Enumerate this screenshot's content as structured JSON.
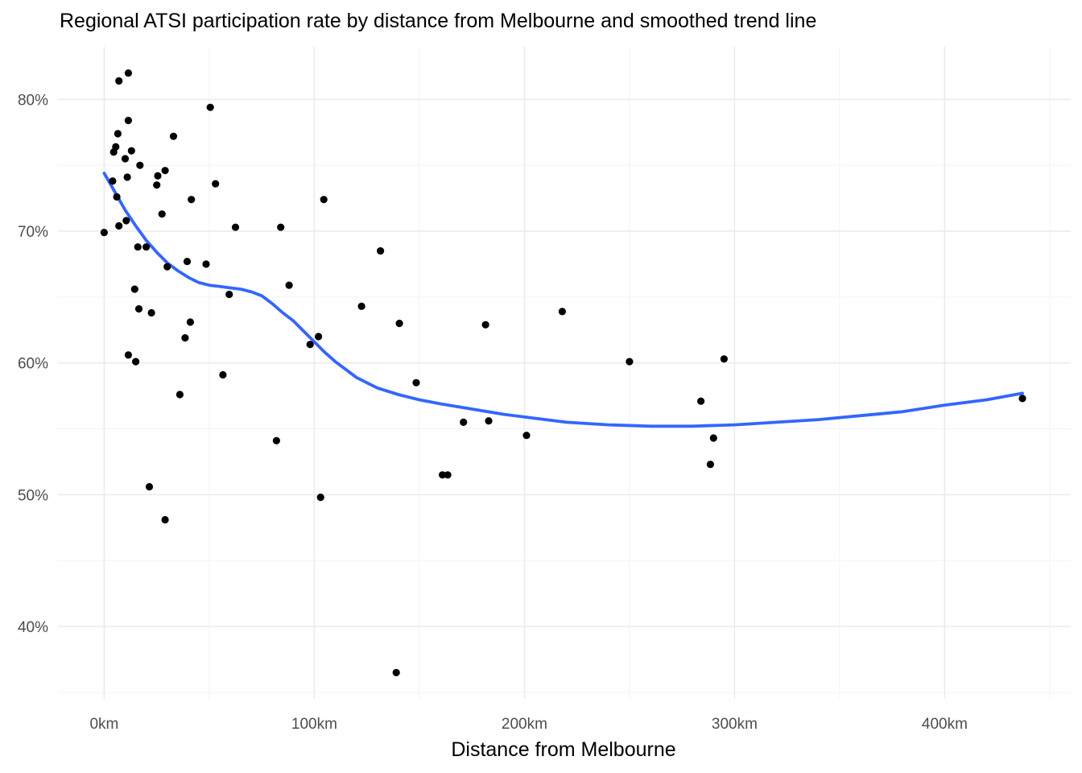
{
  "chart_data": {
    "type": "scatter",
    "title": "Regional ATSI participation rate by distance from Melbourne and smoothed trend line",
    "xlabel": "Distance from Melbourne",
    "ylabel": "",
    "xlim": [
      -22,
      460
    ],
    "ylim": [
      34.5,
      84
    ],
    "x_ticks": [
      {
        "value": 0,
        "label": "0km"
      },
      {
        "value": 100,
        "label": "100km"
      },
      {
        "value": 200,
        "label": "200km"
      },
      {
        "value": 300,
        "label": "300km"
      },
      {
        "value": 400,
        "label": "400km"
      }
    ],
    "y_ticks": [
      {
        "value": 40,
        "label": "40%"
      },
      {
        "value": 50,
        "label": "50%"
      },
      {
        "value": 60,
        "label": "60%"
      },
      {
        "value": 70,
        "label": "70%"
      },
      {
        "value": 80,
        "label": "80%"
      }
    ],
    "grid": true,
    "legend": "none",
    "colors": {
      "points": "#000000",
      "trend": "#3366ff"
    },
    "points": [
      {
        "x": 0,
        "y": 69.9
      },
      {
        "x": 4,
        "y": 73.8
      },
      {
        "x": 4.5,
        "y": 76
      },
      {
        "x": 5.5,
        "y": 76.4
      },
      {
        "x": 6,
        "y": 72.6
      },
      {
        "x": 6.5,
        "y": 77.4
      },
      {
        "x": 7,
        "y": 81.4
      },
      {
        "x": 7,
        "y": 70.4
      },
      {
        "x": 10,
        "y": 75.5
      },
      {
        "x": 10.5,
        "y": 70.8
      },
      {
        "x": 11,
        "y": 74.1
      },
      {
        "x": 11.5,
        "y": 78.4
      },
      {
        "x": 11.5,
        "y": 82
      },
      {
        "x": 11.5,
        "y": 60.6
      },
      {
        "x": 13,
        "y": 76.1
      },
      {
        "x": 14.5,
        "y": 65.6
      },
      {
        "x": 15,
        "y": 60.1
      },
      {
        "x": 16,
        "y": 68.8
      },
      {
        "x": 16.5,
        "y": 64.1
      },
      {
        "x": 17,
        "y": 75
      },
      {
        "x": 20,
        "y": 68.8
      },
      {
        "x": 21.5,
        "y": 50.6
      },
      {
        "x": 22.5,
        "y": 63.8
      },
      {
        "x": 25,
        "y": 73.5
      },
      {
        "x": 25.5,
        "y": 74.2
      },
      {
        "x": 27.5,
        "y": 71.3
      },
      {
        "x": 29,
        "y": 74.6
      },
      {
        "x": 29,
        "y": 48.1
      },
      {
        "x": 30,
        "y": 67.3
      },
      {
        "x": 33,
        "y": 77.2
      },
      {
        "x": 36,
        "y": 57.6
      },
      {
        "x": 38.5,
        "y": 61.9
      },
      {
        "x": 39.5,
        "y": 67.7
      },
      {
        "x": 41,
        "y": 63.1
      },
      {
        "x": 41.5,
        "y": 72.4
      },
      {
        "x": 48.5,
        "y": 67.5
      },
      {
        "x": 50.5,
        "y": 79.4
      },
      {
        "x": 53,
        "y": 73.6
      },
      {
        "x": 56.5,
        "y": 59.1
      },
      {
        "x": 59.5,
        "y": 65.2
      },
      {
        "x": 62.5,
        "y": 70.3
      },
      {
        "x": 82,
        "y": 54.1
      },
      {
        "x": 84,
        "y": 70.3
      },
      {
        "x": 88,
        "y": 65.9
      },
      {
        "x": 98,
        "y": 61.4
      },
      {
        "x": 102,
        "y": 62
      },
      {
        "x": 103,
        "y": 49.8
      },
      {
        "x": 104.5,
        "y": 72.4
      },
      {
        "x": 122.5,
        "y": 64.3
      },
      {
        "x": 131.5,
        "y": 68.5
      },
      {
        "x": 139,
        "y": 36.5
      },
      {
        "x": 140.5,
        "y": 63
      },
      {
        "x": 148.5,
        "y": 58.5
      },
      {
        "x": 161,
        "y": 51.5
      },
      {
        "x": 163.5,
        "y": 51.5
      },
      {
        "x": 171,
        "y": 55.5
      },
      {
        "x": 181.5,
        "y": 62.9
      },
      {
        "x": 183,
        "y": 55.6
      },
      {
        "x": 201,
        "y": 54.5
      },
      {
        "x": 218,
        "y": 63.9
      },
      {
        "x": 250,
        "y": 60.1
      },
      {
        "x": 284,
        "y": 57.1
      },
      {
        "x": 288.5,
        "y": 52.3
      },
      {
        "x": 290,
        "y": 54.3
      },
      {
        "x": 295,
        "y": 60.3
      },
      {
        "x": 437,
        "y": 57.3
      }
    ],
    "trend": [
      {
        "x": 0,
        "y": 74.4
      },
      {
        "x": 5,
        "y": 73
      },
      {
        "x": 10,
        "y": 71.6
      },
      {
        "x": 15,
        "y": 70.4
      },
      {
        "x": 20,
        "y": 69.3
      },
      {
        "x": 25,
        "y": 68.4
      },
      {
        "x": 30,
        "y": 67.6
      },
      {
        "x": 35,
        "y": 67
      },
      {
        "x": 40,
        "y": 66.5
      },
      {
        "x": 45,
        "y": 66.1
      },
      {
        "x": 50,
        "y": 65.9
      },
      {
        "x": 55,
        "y": 65.8
      },
      {
        "x": 60,
        "y": 65.7
      },
      {
        "x": 65,
        "y": 65.6
      },
      {
        "x": 70,
        "y": 65.4
      },
      {
        "x": 75,
        "y": 65.1
      },
      {
        "x": 80,
        "y": 64.5
      },
      {
        "x": 85,
        "y": 63.8
      },
      {
        "x": 90,
        "y": 63.2
      },
      {
        "x": 95,
        "y": 62.4
      },
      {
        "x": 100,
        "y": 61.6
      },
      {
        "x": 105,
        "y": 60.8
      },
      {
        "x": 110,
        "y": 60.1
      },
      {
        "x": 115,
        "y": 59.5
      },
      {
        "x": 120,
        "y": 58.9
      },
      {
        "x": 125,
        "y": 58.5
      },
      {
        "x": 130,
        "y": 58.1
      },
      {
        "x": 140,
        "y": 57.6
      },
      {
        "x": 150,
        "y": 57.2
      },
      {
        "x": 160,
        "y": 56.9
      },
      {
        "x": 175,
        "y": 56.5
      },
      {
        "x": 190,
        "y": 56.1
      },
      {
        "x": 205,
        "y": 55.8
      },
      {
        "x": 220,
        "y": 55.5
      },
      {
        "x": 240,
        "y": 55.3
      },
      {
        "x": 260,
        "y": 55.2
      },
      {
        "x": 280,
        "y": 55.2
      },
      {
        "x": 300,
        "y": 55.3
      },
      {
        "x": 320,
        "y": 55.5
      },
      {
        "x": 340,
        "y": 55.7
      },
      {
        "x": 360,
        "y": 56
      },
      {
        "x": 380,
        "y": 56.3
      },
      {
        "x": 400,
        "y": 56.8
      },
      {
        "x": 420,
        "y": 57.2
      },
      {
        "x": 437,
        "y": 57.7
      }
    ]
  }
}
